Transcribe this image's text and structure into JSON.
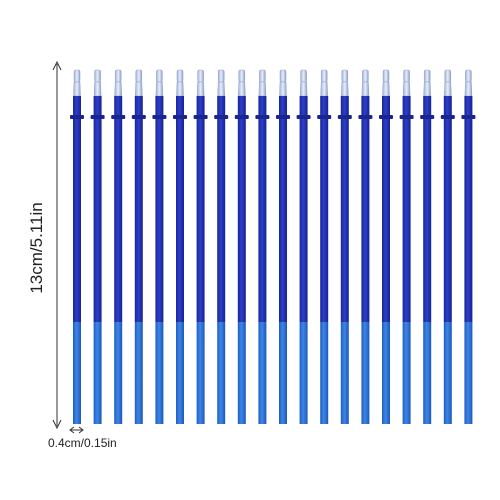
{
  "dimensions": {
    "height": "13cm/5.11in",
    "width": "0.4cm/0.15in"
  }
}
